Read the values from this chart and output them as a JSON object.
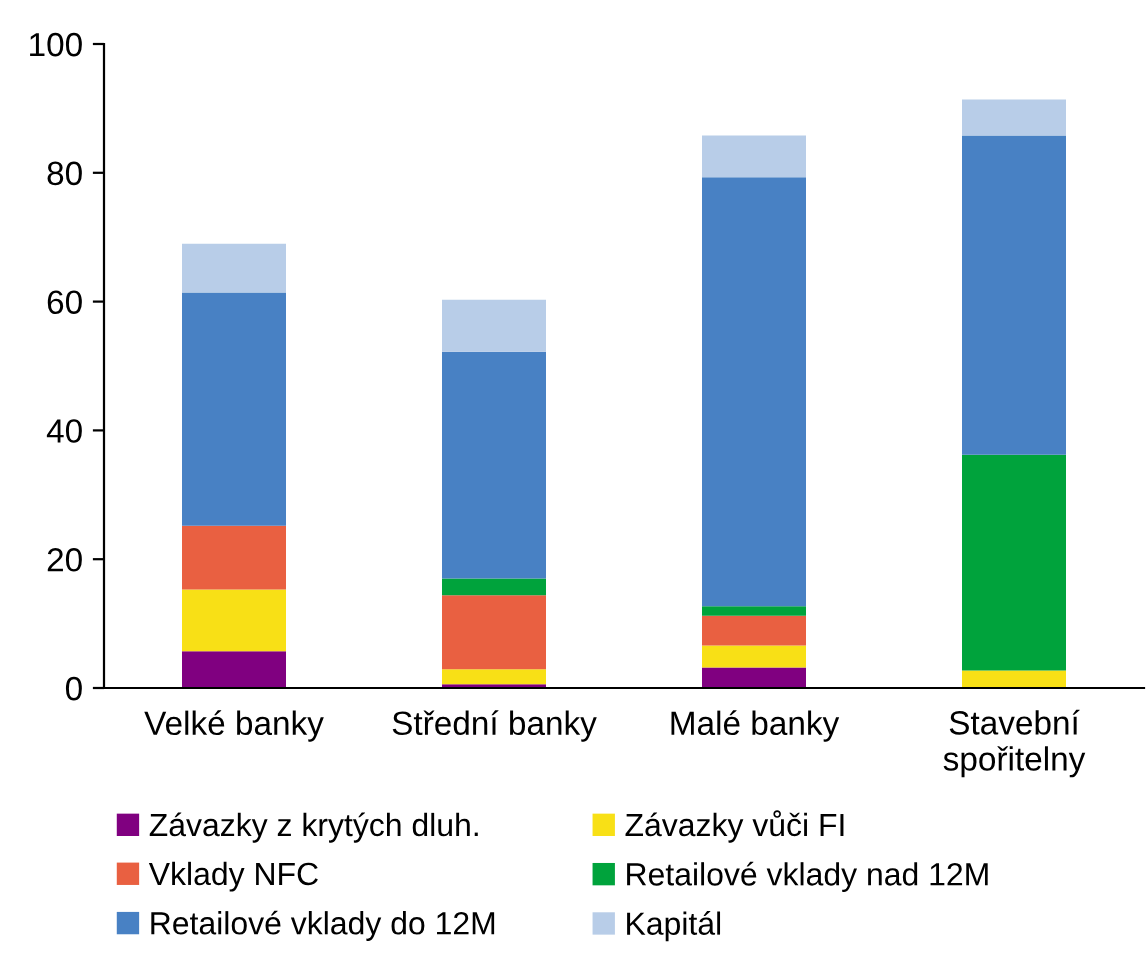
{
  "chart_data": {
    "type": "bar",
    "stacked": true,
    "categories": [
      "Velké banky",
      "Střední banky",
      "Malé banky",
      "Stavební\nspořitelny"
    ],
    "series": [
      {
        "name": "Závazky z krytých dluh.",
        "color": "#800080",
        "values": [
          5.7,
          0.6,
          3.2,
          0
        ]
      },
      {
        "name": "Závazky vůči FI",
        "color": "#f8e016",
        "values": [
          9.6,
          2.3,
          3.4,
          2.7
        ]
      },
      {
        "name": "Vklady NFC",
        "color": "#e96041",
        "values": [
          9.9,
          11.5,
          4.6,
          0
        ]
      },
      {
        "name": "Retailové vklady nad 12M",
        "color": "#00a33c",
        "values": [
          0,
          2.6,
          1.5,
          33.5
        ]
      },
      {
        "name": "Retailové vklady do 12M",
        "color": "#4881c4",
        "values": [
          36.2,
          35.2,
          66.6,
          49.6
        ]
      },
      {
        "name": "Kapitál",
        "color": "#b8cde8",
        "values": [
          7.6,
          8.1,
          6.5,
          5.6
        ]
      }
    ],
    "ylim": [
      0,
      100
    ],
    "yticks": [
      0,
      20,
      40,
      60,
      80,
      100
    ],
    "grid": false,
    "legend": "bottom"
  }
}
